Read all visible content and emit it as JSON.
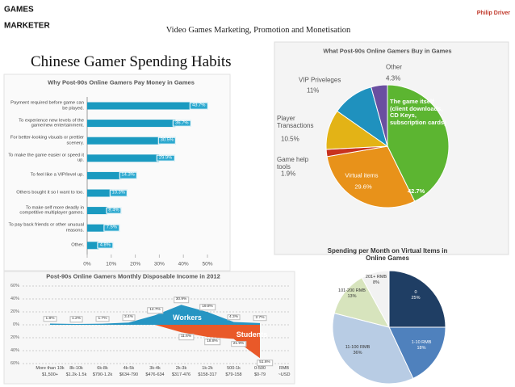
{
  "header": {
    "logo_line1": "GAMES",
    "logo_line2": "MARKETER",
    "title": "Video Games Marketing, Promotion and Monetisation",
    "author": "Philip Driver",
    "slide_title": "Chinese Gamer Spending Habits"
  },
  "chart_data": [
    {
      "type": "hbar",
      "title": "Why Post-90s Online Gamers Pay Money in Games",
      "categories": [
        "Payment required before game can be played.",
        "To experience new levels of the game/new entertainment.",
        "For better-looking visuals or prettier scenery.",
        "To make the game easier or speed it up.",
        "To feel like a VIP/level up.",
        "Others bought it so I want to too.",
        "To make self more deadly in competitive multiplayer games.",
        "To pay back friends or other unusual reasons.",
        "Other."
      ],
      "values": [
        43.7,
        36.7,
        30.5,
        29.9,
        14.3,
        10.3,
        8.4,
        7.5,
        4.8
      ],
      "value_labels": [
        "43.7%",
        "36.7%",
        "30.5%",
        "29.9%",
        "14.3%",
        "10.3%",
        "8.4%",
        "7.5%",
        "4.8%"
      ],
      "color": "#1a9ac0",
      "xlim": [
        0,
        50
      ],
      "xticks": [
        {
          "value": 0,
          "label": "0%"
        },
        {
          "value": 10,
          "label": "10%"
        },
        {
          "value": 20,
          "label": "20%"
        },
        {
          "value": 30,
          "label": "30%"
        },
        {
          "value": 40,
          "label": "40%"
        },
        {
          "value": 50,
          "label": "50%"
        }
      ]
    },
    {
      "type": "pie",
      "title": "What Post-90s Online Gamers Buy in Games",
      "categories": [
        "The game itself (client downloads, CD Keys, subscription cards)",
        "Virtual items",
        "Game help tools",
        "Player Transactions",
        "VIP Priveleges",
        "Other"
      ],
      "values": [
        42.7,
        29.6,
        1.9,
        10.5,
        11,
        4.3
      ],
      "value_labels": [
        "42.7%",
        "29.6%",
        "1.9%",
        "10.5%",
        "11%",
        "4.3%"
      ],
      "colors": [
        "#5cb531",
        "#e8921a",
        "#c8321e",
        "#e3b316",
        "#1f91be",
        "#6a4fa0"
      ]
    },
    {
      "type": "area",
      "title": "Post-90s Online Gamers Monthly Disposable Income in 2012",
      "categories": [
        "More than 10k",
        "8k-10k",
        "6k-8k",
        "4k-5k",
        "3k-4k",
        "2k-3k",
        "1k-2k",
        "500-1k",
        "0-500"
      ],
      "categories_usd": [
        "$1,500+",
        "$1.2k-1.5k",
        "$790-1.2k",
        "$634-790",
        "$476-634",
        "$317-476",
        "$158-317",
        "$79-158",
        "$0-79"
      ],
      "x_unit": [
        "RMB",
        "~USD"
      ],
      "series": [
        {
          "name": "Workers",
          "color": "#1a8fc0",
          "values": [
            1.8,
            1.2,
            1.7,
            3.4,
            14.7,
            30.9,
            19.8,
            4.3,
            2.7
          ],
          "value_labels": [
            "1.8%",
            "1.2%",
            "1.7%",
            "3.4%",
            "14.7%",
            "30.9%",
            "19.8%",
            "4.3%",
            "2.7%"
          ]
        },
        {
          "name": "Students",
          "color": "#e8501e",
          "values": [
            0,
            0,
            0,
            0,
            0,
            -11.6,
            -18.8,
            -21.9,
            -51.6
          ],
          "value_labels": [
            null,
            null,
            null,
            null,
            null,
            "11.6%",
            "18.8%",
            "21.9%",
            "51.6%"
          ]
        }
      ],
      "ylim": [
        -60,
        60
      ],
      "yticks": [
        {
          "value": 60,
          "label": "60%"
        },
        {
          "value": 40,
          "label": "40%"
        },
        {
          "value": 20,
          "label": "20%"
        },
        {
          "value": 0,
          "label": "0%"
        },
        {
          "value": -20,
          "label": "20%"
        },
        {
          "value": -40,
          "label": "40%"
        },
        {
          "value": -60,
          "label": "60%"
        }
      ],
      "grid": true
    },
    {
      "type": "pie",
      "title": "Spending per Month on Virtual Items in Online Games",
      "categories": [
        "0",
        "1-10 RMB",
        "11-100 RMB",
        "101-200 RMB",
        "201+ RMB"
      ],
      "values": [
        25,
        18,
        36,
        13,
        8
      ],
      "value_labels": [
        "25%",
        "18%",
        "36%",
        "13%",
        "8%"
      ],
      "colors": [
        "#1f3e64",
        "#4f81bd",
        "#b8cce4",
        "#d7e4bd",
        "#f2f2f2"
      ]
    }
  ]
}
